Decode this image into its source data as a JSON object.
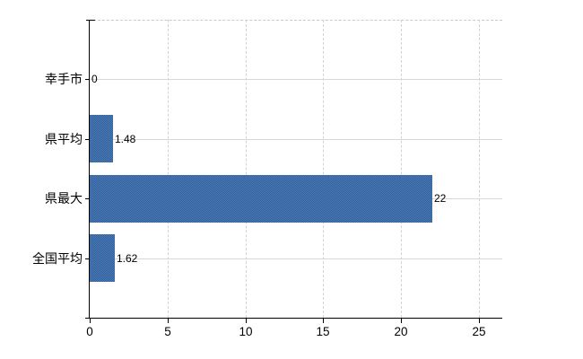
{
  "chart_data": {
    "type": "bar",
    "orientation": "horizontal",
    "title": "",
    "xlabel": "",
    "ylabel": "",
    "categories": [
      "幸手市",
      "県平均",
      "県最大",
      "全国平均"
    ],
    "values": [
      0,
      1.48,
      22,
      1.62
    ],
    "value_labels": [
      "0",
      "1.48",
      "22",
      "1.62"
    ],
    "xticks": [
      0,
      5,
      10,
      15,
      20,
      25
    ],
    "xtick_labels": [
      "0",
      "5",
      "10",
      "15",
      "20",
      "25"
    ],
    "xlim": [
      0,
      26.5
    ],
    "legend": "none",
    "grid": {
      "vertical_style": "dashed",
      "horizontal_style": "solid"
    },
    "colors": {
      "bar": "#3c6da9",
      "bar_dither_light": "#4a79b3",
      "bar_dither_dark": "#32619e",
      "axis": "#000000",
      "gridline_horizontal": "#d6dad6",
      "gridline_vertical": "#d2d2d2",
      "plot_top_border": "#c9c9c9",
      "text": "#000000",
      "background": "#ffffff"
    }
  }
}
